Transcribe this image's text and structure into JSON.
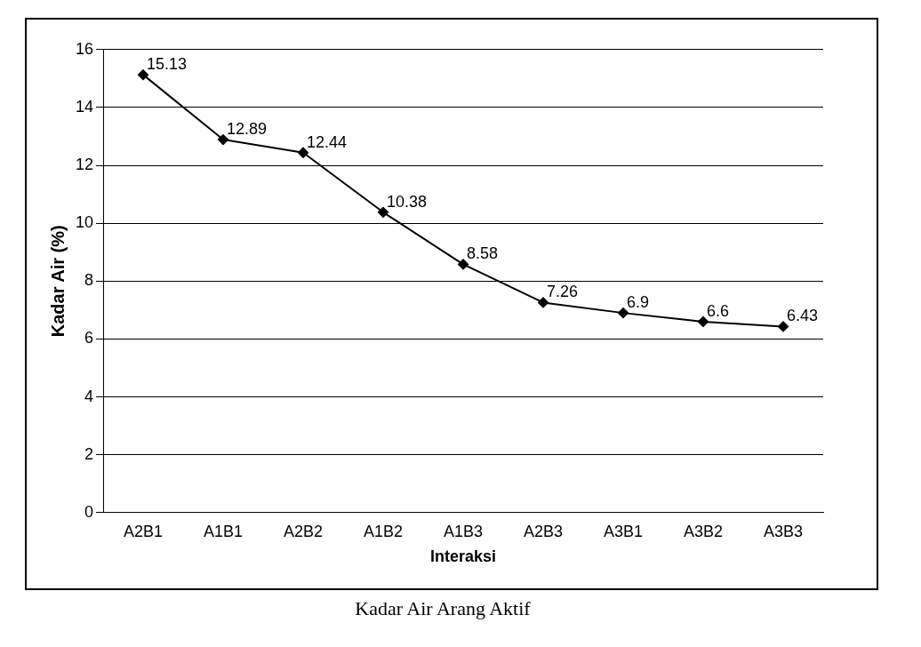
{
  "chart_data": {
    "type": "line",
    "xlabel": "Interaksi",
    "ylabel": "Kadar Air (%)",
    "categories": [
      "A2B1",
      "A1B1",
      "A2B2",
      "A1B2",
      "A1B3",
      "A2B3",
      "A3B1",
      "A3B2",
      "A3B3"
    ],
    "series": [
      {
        "color": "#000000",
        "values": [
          15.13,
          12.89,
          12.44,
          10.38,
          8.58,
          7.26,
          6.9,
          6.6,
          6.43
        ]
      }
    ],
    "ylim": [
      0,
      16
    ],
    "yticks": [
      0,
      2,
      4,
      6,
      8,
      10,
      12,
      14,
      16
    ],
    "grid": "y",
    "legend": false,
    "marker": "diamond",
    "line_style": "solid",
    "data_labels": true,
    "annotations": [
      "Kadar Air Arang Aktif"
    ]
  }
}
